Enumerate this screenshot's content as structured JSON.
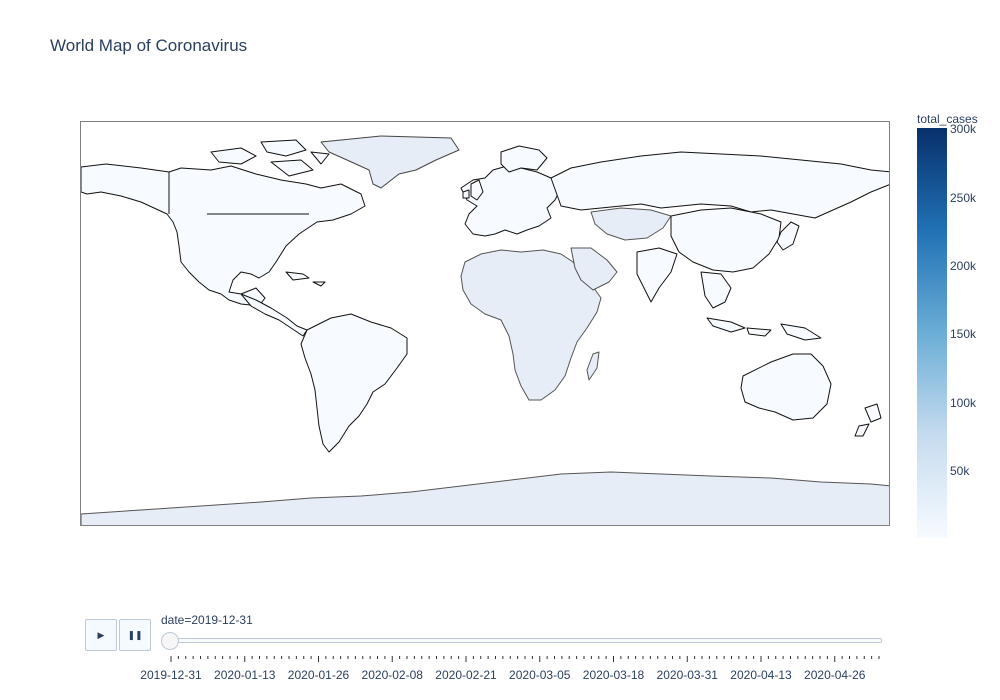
{
  "title": "World Map of Coronavirus",
  "colorbar": {
    "title": "total_cases",
    "ticks": [
      "300k",
      "250k",
      "200k",
      "150k",
      "100k",
      "50k"
    ],
    "colors": [
      "#08306b",
      "#2171b5",
      "#6baed6",
      "#c6dbef",
      "#f7fbff"
    ]
  },
  "animation": {
    "play_icon": "play-icon",
    "pause_icon": "pause-icon",
    "current_label": "date=2019-12-31",
    "current_date": "2019-12-31",
    "progress": 0,
    "tick_labels": [
      "2019-12-31",
      "2020-01-13",
      "2020-01-26",
      "2020-02-08",
      "2020-02-21",
      "2020-03-05",
      "2020-03-18",
      "2020-03-31",
      "2020-04-13",
      "2020-04-26"
    ]
  },
  "map": {
    "projection": "equirectangular",
    "land_color": "#f7fbff",
    "coastline_color": "#000000"
  }
}
